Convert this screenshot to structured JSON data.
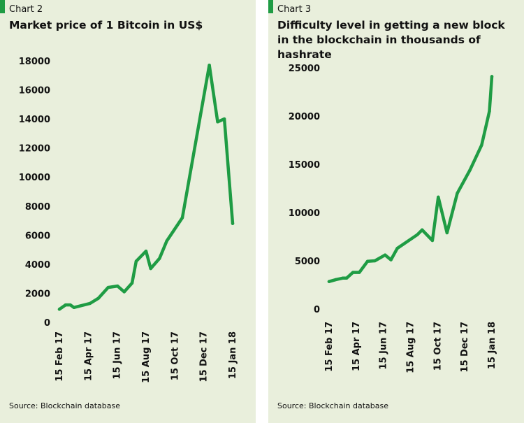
{
  "colors": {
    "panel_bg": "#e9efdc",
    "line": "#1f9c44",
    "accent": "#1f9c44",
    "gap": "#ffffff"
  },
  "charts": [
    {
      "label": "Chart 2",
      "title_lines": [
        "Market price of 1 Bitcoin in US$"
      ],
      "source": "Source: Blockchain database"
    },
    {
      "label": "Chart 3",
      "title_lines": [
        "Difficulty level in getting a new block",
        "in the blockchain in thousands of hashrate"
      ],
      "source": "Source: Blockchain database"
    }
  ],
  "chart_data": [
    {
      "type": "line",
      "title": "Market price of 1 Bitcoin in US$",
      "x_ticks": [
        "15 Feb 17",
        "15 Apr 17",
        "15 Jun 17",
        "15 Aug 17",
        "15 Oct 17",
        "15 Dec 17",
        "15 Jan 18"
      ],
      "y_ticks": [
        0,
        2000,
        4000,
        6000,
        8000,
        10000,
        12000,
        14000,
        16000,
        18000
      ],
      "ylim": [
        0,
        18000
      ],
      "xlim": [
        "2017-02-15",
        "2018-01-15"
      ],
      "grid": false,
      "series": [
        {
          "points": [
            [
              "2017-02-15",
              900
            ],
            [
              "2017-02-27",
              1200
            ],
            [
              "2017-03-08",
              1200
            ],
            [
              "2017-03-15",
              1020
            ],
            [
              "2017-04-15",
              1300
            ],
            [
              "2017-05-01",
              1650
            ],
            [
              "2017-05-20",
              2400
            ],
            [
              "2017-06-07",
              2500
            ],
            [
              "2017-06-20",
              2100
            ],
            [
              "2017-07-05",
              2700
            ],
            [
              "2017-07-13",
              4200
            ],
            [
              "2017-08-01",
              4900
            ],
            [
              "2017-08-10",
              3700
            ],
            [
              "2017-08-27",
              4400
            ],
            [
              "2017-09-10",
              5600
            ],
            [
              "2017-10-10",
              7200
            ],
            [
              "2017-12-01",
              17700
            ],
            [
              "2017-12-17",
              13800
            ],
            [
              "2017-12-30",
              14000
            ],
            [
              "2018-01-15",
              6800
            ]
          ]
        }
      ]
    },
    {
      "type": "line",
      "title": "Difficulty level in getting a new block in the blockchain in thousands of hashrate",
      "x_ticks": [
        "15 Feb 17",
        "15 Apr 17",
        "15 Jun 17",
        "15 Aug 17",
        "15 Oct 17",
        "15 Dec 17",
        "15 Jan 18"
      ],
      "y_ticks": [
        0,
        5000,
        10000,
        15000,
        20000,
        25000
      ],
      "ylim": [
        0,
        25000
      ],
      "xlim": [
        "2017-02-15",
        "2018-01-15"
      ],
      "grid": false,
      "series": [
        {
          "points": [
            [
              "2017-02-15",
              2850
            ],
            [
              "2017-03-01",
              3050
            ],
            [
              "2017-03-15",
              3200
            ],
            [
              "2017-03-23",
              3200
            ],
            [
              "2017-04-05",
              3800
            ],
            [
              "2017-04-18",
              3800
            ],
            [
              "2017-05-05",
              4950
            ],
            [
              "2017-05-20",
              5000
            ],
            [
              "2017-06-10",
              5600
            ],
            [
              "2017-06-22",
              5100
            ],
            [
              "2017-07-05",
              6300
            ],
            [
              "2017-08-15",
              7700
            ],
            [
              "2017-08-25",
              8200
            ],
            [
              "2017-09-15",
              7100
            ],
            [
              "2017-09-27",
              11600
            ],
            [
              "2017-10-15",
              7900
            ],
            [
              "2017-11-05",
              12000
            ],
            [
              "2017-12-01",
              14400
            ],
            [
              "2017-12-25",
              17000
            ],
            [
              "2018-01-10",
              20500
            ],
            [
              "2018-01-15",
              24100
            ]
          ]
        }
      ]
    }
  ]
}
